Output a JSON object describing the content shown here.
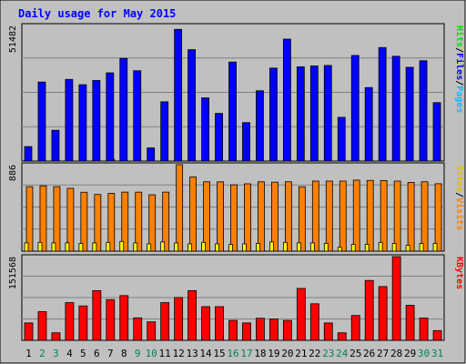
{
  "chart_data": [
    {
      "type": "bar",
      "title": "Daily usage for May 2015",
      "panel": "pages_files_hits",
      "ymax_label": "51482",
      "ylim": [
        0,
        51482
      ],
      "series": [
        {
          "name": "Pages",
          "color": "#00c0ff",
          "values": [
            0,
            0,
            0,
            0,
            0,
            0,
            700,
            0,
            0,
            0,
            0,
            0,
            0,
            0,
            0,
            0,
            0,
            0,
            0,
            0,
            0,
            0,
            0,
            0,
            0,
            0,
            0,
            0,
            0,
            0,
            0
          ]
        },
        {
          "name": "Files",
          "color": "#0000ff",
          "values": [
            5500,
            30000,
            11700,
            31000,
            29000,
            30600,
            33500,
            39000,
            34300,
            5000,
            22500,
            50000,
            42300,
            24000,
            18100,
            37600,
            14600,
            26700,
            35300,
            46300,
            35800,
            36100,
            36300,
            16600,
            40100,
            27900,
            43100,
            39800,
            35600,
            38100,
            22200
          ]
        },
        {
          "name": "Hits",
          "color": "#00e000",
          "values": [
            0,
            0,
            0,
            0,
            0,
            0,
            0,
            0,
            0,
            0,
            0,
            0,
            0,
            0,
            0,
            0,
            0,
            0,
            0,
            0,
            0,
            0,
            0,
            0,
            0,
            0,
            0,
            0,
            0,
            0,
            0
          ]
        }
      ]
    },
    {
      "type": "bar",
      "panel": "visits_sites",
      "ymax_label": "886",
      "ylim": [
        0,
        886
      ],
      "series": [
        {
          "name": "Visits",
          "color": "#ff8000",
          "values": [
            661,
            670,
            661,
            644,
            604,
            581,
            592,
            605,
            605,
            578,
            605,
            886,
            760,
            711,
            711,
            680,
            690,
            711,
            707,
            711,
            660,
            718,
            718,
            718,
            728,
            725,
            724,
            718,
            705,
            711,
            691
          ]
        },
        {
          "name": "Sites",
          "color": "#ffff00",
          "values": [
            85,
            90,
            85,
            85,
            80,
            85,
            90,
            100,
            85,
            75,
            95,
            85,
            75,
            90,
            75,
            70,
            75,
            80,
            95,
            90,
            85,
            85,
            80,
            40,
            70,
            70,
            90,
            80,
            60,
            80,
            80
          ]
        }
      ]
    },
    {
      "type": "bar",
      "panel": "kbytes",
      "ymax_label": "151568",
      "ylim": [
        0,
        151568
      ],
      "series": [
        {
          "name": "KBytes",
          "color": "#ff0000",
          "values": [
            31500,
            52000,
            13600,
            68300,
            62300,
            90000,
            73700,
            81000,
            40700,
            33500,
            68300,
            77600,
            90000,
            61000,
            61000,
            36100,
            31500,
            40000,
            38700,
            36100,
            94000,
            66200,
            31500,
            13600,
            45000,
            108400,
            97400,
            151568,
            63400,
            40500,
            17600
          ]
        }
      ]
    }
  ],
  "day_labels": [
    "1",
    "2",
    "3",
    "4",
    "5",
    "6",
    "7",
    "8",
    "9",
    "10",
    "11",
    "12",
    "13",
    "14",
    "15",
    "16",
    "17",
    "18",
    "19",
    "20",
    "21",
    "22",
    "23",
    "24",
    "25",
    "26",
    "27",
    "28",
    "29",
    "30",
    "31"
  ],
  "weekend_days": [
    2,
    3,
    9,
    10,
    16,
    17,
    23,
    24,
    30,
    31
  ],
  "colors": {
    "background": "#c0c0c0",
    "title": "#0000ff",
    "weekday_label": "#000000",
    "weekend_label": "#00805c"
  }
}
